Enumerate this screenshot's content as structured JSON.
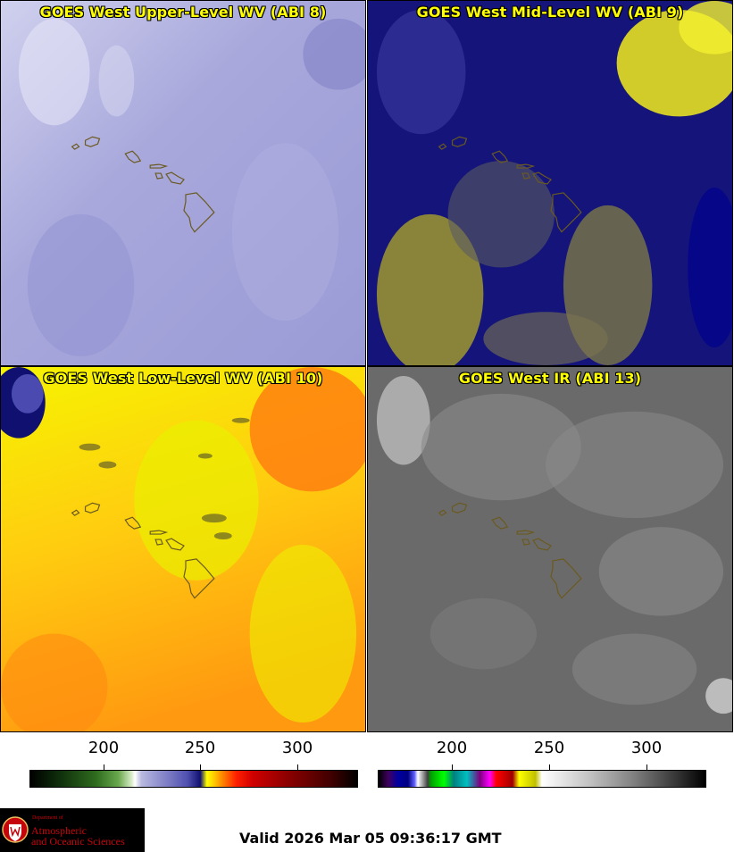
{
  "panels": [
    {
      "title": "GOES West Upper-Level WV (ABI 8)",
      "palette": "lavender"
    },
    {
      "title": "GOES West Mid-Level WV (ABI 9)",
      "palette": "navy-yellow"
    },
    {
      "title": "GOES West Low-Level WV (ABI 10)",
      "palette": "yellow-orange"
    },
    {
      "title": "GOES West IR (ABI 13)",
      "palette": "gray"
    }
  ],
  "colorbars": [
    {
      "ticks": [
        "200",
        "250",
        "300"
      ],
      "gradient": "linear-gradient(to right,#000000 0%,#0d2a0a 8%,#2e6b1e 20%,#6aa84f 27%,#d8ecc8 31%,#ffffff 32%,#b8b8e0 34%,#5050b0 48%,#101070 52%,#ffff00 54%,#ffd000 56%,#ff8000 59%,#ff2000 63%,#d00000 68%,#900000 78%,#400000 92%,#000000 100%)"
    },
    {
      "ticks": [
        "200",
        "250",
        "300"
      ],
      "gradient": "linear-gradient(to right,#000000 0%,#400060 3%,#0000a0 6%,#000080 9%,#6060ff 11%,#ffffff 12%,#404040 15%,#00a000 16%,#00ff00 20%,#008080 23%,#00c0c0 27%,#800080 31%,#ff00ff 34%,#ff0000 36%,#a00000 41%,#ffff00 43%,#c0c000 48%,#ffffff 50%,#c0c0c0 65%,#808080 78%,#303030 92%,#000000 100%)"
    }
  ],
  "logo": {
    "dept": "Department of",
    "line1": "Atmospheric",
    "line2": "and Oceanic Sciences"
  },
  "valid": "Valid 2026 Mar 05 09:36:17 GMT"
}
